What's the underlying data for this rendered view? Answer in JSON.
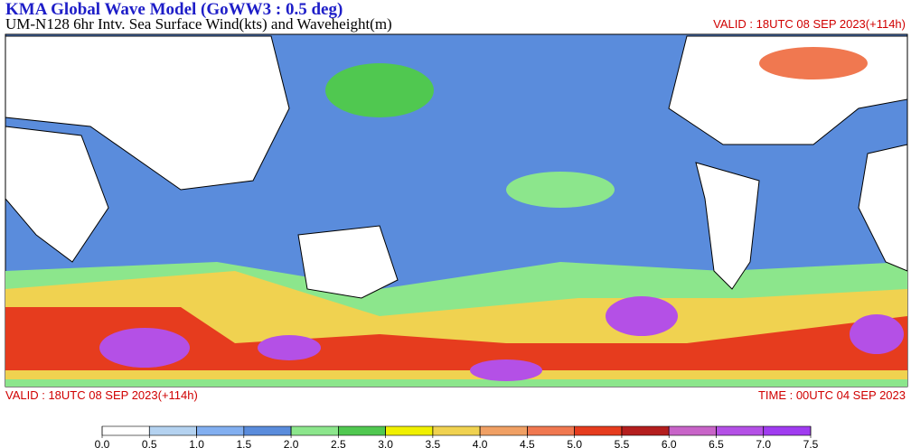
{
  "header": {
    "title": "KMA  Global Wave Model (GoWW3 : 0.5 deg)",
    "subtitle": "UM-N128  6hr Intv. Sea Surface Wind(kts) and Waveheight(m)",
    "valid": "VALID : 18UTC 08 SEP 2023(+114h)"
  },
  "footer": {
    "valid": "VALID : 18UTC 08 SEP 2023(+114h)",
    "time": "TIME : 00UTC 04 SEP 2023"
  },
  "colorbar": {
    "lim": [
      0,
      7.5
    ],
    "colors": [
      "#ffffff",
      "#b4d2f0",
      "#82aff0",
      "#5a8cdc",
      "#8ce68c",
      "#50c850",
      "#f0f000",
      "#f0d250",
      "#f0a064",
      "#f07850",
      "#e63c1e",
      "#b41e1e",
      "#c864c8",
      "#b450e6",
      "#a03cf0"
    ],
    "ticks": [
      {
        "value": 0,
        "label": "0.0"
      },
      0.5,
      {
        "value": 1,
        "label": "1.0"
      },
      1.5,
      {
        "value": 2,
        "label": "2.0"
      },
      2.5,
      {
        "value": 3,
        "label": "3.0"
      },
      3.5,
      {
        "value": 4,
        "label": "4.0"
      },
      4.5,
      {
        "value": 5,
        "label": "5.0"
      },
      5.5,
      {
        "value": 6,
        "label": "6.0"
      },
      6.5,
      {
        "value": 7,
        "label": "7.0"
      },
      7.5
    ]
  }
}
